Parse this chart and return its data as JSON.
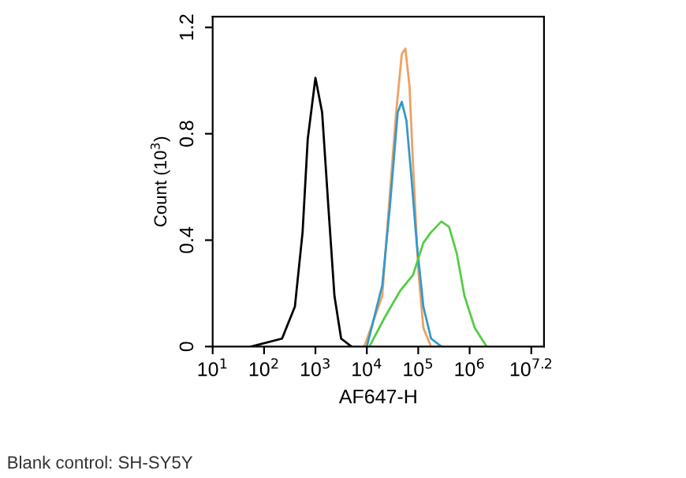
{
  "chart_data": {
    "type": "line",
    "xlabel": "AF647-H",
    "ylabel": "Count (10$^{3}$)",
    "log": "x",
    "grid": false,
    "legend": false,
    "xlim": [
      10,
      28000000
    ],
    "ylim": [
      0,
      1.24
    ],
    "xticks": [
      {
        "value": 10,
        "label": "10$^{1}$"
      },
      {
        "value": 100,
        "label": "10$^{2}$"
      },
      {
        "value": 1000,
        "label": "10$^{3}$"
      },
      {
        "value": 10000,
        "label": "10$^{4}$"
      },
      {
        "value": 100000,
        "label": "10$^{5}$"
      },
      {
        "value": 1000000,
        "label": "10$^{6}$"
      },
      {
        "value": 15848932,
        "label": "10$^{7.2}$"
      }
    ],
    "yticks": [
      0,
      0.4,
      0.8,
      1.2
    ],
    "annotations": [
      "Blank control: SH-SY5Y"
    ],
    "series": [
      {
        "color": "#000000",
        "x": [
          56,
          224,
          398,
          562,
          708,
          1000,
          1349,
          1778,
          2344,
          3162,
          5012
        ],
        "values": [
          0,
          0.03,
          0.15,
          0.43,
          0.78,
          1.01,
          0.88,
          0.53,
          0.19,
          0.03,
          0
        ]
      },
      {
        "color": "#f0a060",
        "x": [
          8913,
          19953,
          28184,
          37154,
          47863,
          56234,
          67608,
          79433,
          100000,
          125893,
          177828
        ],
        "values": [
          0,
          0.19,
          0.58,
          0.88,
          1.1,
          1.12,
          0.98,
          0.68,
          0.29,
          0.07,
          0
        ]
      },
      {
        "color": "#3399cc",
        "x": [
          10000,
          19953,
          28184,
          39811,
          47863,
          58884,
          74131,
          93325,
          125893,
          177828,
          281838
        ],
        "values": [
          0,
          0.23,
          0.53,
          0.88,
          0.92,
          0.85,
          0.63,
          0.39,
          0.15,
          0.03,
          0
        ]
      },
      {
        "color": "#55cc44",
        "x": [
          11220,
          22387,
          44668,
          79433,
          125893,
          177828,
          281838,
          398107,
          562341,
          794328,
          1258925,
          2137962
        ],
        "values": [
          0,
          0.11,
          0.21,
          0.27,
          0.39,
          0.43,
          0.47,
          0.45,
          0.35,
          0.19,
          0.07,
          0
        ]
      }
    ]
  }
}
